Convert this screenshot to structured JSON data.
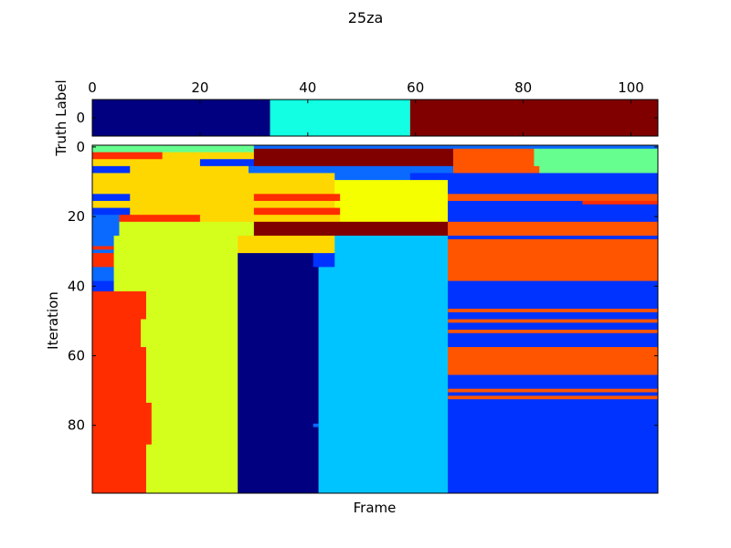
{
  "chart_data": [
    {
      "type": "heatmap",
      "panel": "truth",
      "title": "25za",
      "ylabel": "Truth Label",
      "xlim": [
        0,
        105
      ],
      "xticks": [
        "0",
        "20",
        "40",
        "60",
        "80",
        "100"
      ],
      "yticks": [
        "0"
      ],
      "colormap": "jet",
      "segments": [
        {
          "start": 0,
          "end": 33,
          "color": "#000080"
        },
        {
          "start": 33,
          "end": 59,
          "color": "#13ffe3"
        },
        {
          "start": 59,
          "end": 105,
          "color": "#800000"
        }
      ]
    },
    {
      "type": "heatmap",
      "panel": "iterations",
      "xlabel": "Frame",
      "ylabel": "Iteration",
      "xlim": [
        0,
        105
      ],
      "ylim": [
        0,
        100
      ],
      "yticks": [
        "0",
        "20",
        "40",
        "60",
        "80"
      ],
      "colormap": "jet",
      "row_groups": [
        {
          "from": 0,
          "to": 1,
          "segments": [
            [
              0,
              30,
              "#66ff8f"
            ],
            [
              30,
              83,
              "#0a6aff"
            ],
            [
              83,
              105,
              "#0a6aff"
            ]
          ]
        },
        {
          "from": 1,
          "to": 2,
          "segments": [
            [
              0,
              30,
              "#66ff8f"
            ],
            [
              30,
              67,
              "#800000"
            ],
            [
              67,
              82,
              "#ff5500"
            ],
            [
              82,
              105,
              "#66ff8f"
            ]
          ]
        },
        {
          "from": 2,
          "to": 4,
          "segments": [
            [
              0,
              13,
              "#ff2d00"
            ],
            [
              13,
              30,
              "#ffd700"
            ],
            [
              30,
              67,
              "#800000"
            ],
            [
              67,
              82,
              "#ff5500"
            ],
            [
              82,
              105,
              "#66ff8f"
            ]
          ]
        },
        {
          "from": 4,
          "to": 6,
          "segments": [
            [
              0,
              20,
              "#ffd700"
            ],
            [
              20,
              30,
              "#0033ff"
            ],
            [
              30,
              67,
              "#800000"
            ],
            [
              67,
              82,
              "#ff5500"
            ],
            [
              82,
              105,
              "#66ff8f"
            ]
          ]
        },
        {
          "from": 6,
          "to": 8,
          "segments": [
            [
              0,
              7,
              "#0033ff"
            ],
            [
              7,
              29,
              "#ffd700"
            ],
            [
              29,
              67,
              "#0a6aff"
            ],
            [
              67,
              83,
              "#ff5500"
            ],
            [
              83,
              105,
              "#66ff8f"
            ]
          ]
        },
        {
          "from": 8,
          "to": 10,
          "segments": [
            [
              0,
              45,
              "#ffd700"
            ],
            [
              45,
              59,
              "#0a6aff"
            ],
            [
              59,
              105,
              "#0033ff"
            ]
          ]
        },
        {
          "from": 10,
          "to": 14,
          "segments": [
            [
              0,
              45,
              "#ffd700"
            ],
            [
              45,
              66,
              "#f5ff00"
            ],
            [
              66,
              105,
              "#0033ff"
            ]
          ]
        },
        {
          "from": 14,
          "to": 16,
          "segments": [
            [
              0,
              7,
              "#0033ff"
            ],
            [
              7,
              30,
              "#ffd700"
            ],
            [
              30,
              46,
              "#ff2d00"
            ],
            [
              46,
              66,
              "#f5ff00"
            ],
            [
              66,
              105,
              "#ff5500"
            ]
          ]
        },
        {
          "from": 16,
          "to": 18,
          "segments": [
            [
              0,
              45,
              "#ffd700"
            ],
            [
              45,
              66,
              "#f5ff00"
            ],
            [
              66,
              105,
              "#0033ff"
            ]
          ]
        },
        {
          "from": 18,
          "to": 20,
          "segments": [
            [
              0,
              7,
              "#0033ff"
            ],
            [
              7,
              30,
              "#ffd700"
            ],
            [
              30,
              46,
              "#ff2d00"
            ],
            [
              46,
              66,
              "#f5ff00"
            ],
            [
              66,
              105,
              "#0033ff"
            ]
          ]
        },
        {
          "from": 20,
          "to": 22,
          "segments": [
            [
              0,
              5,
              "#0a6aff"
            ],
            [
              5,
              20,
              "#ff2d00"
            ],
            [
              20,
              30,
              "#ffd700"
            ],
            [
              30,
              46,
              "#ffd700"
            ],
            [
              46,
              66,
              "#f5ff00"
            ],
            [
              66,
              105,
              "#0033ff"
            ]
          ]
        },
        {
          "from": 22,
          "to": 26,
          "segments": [
            [
              0,
              5,
              "#0a6aff"
            ],
            [
              5,
              30,
              "#d4ff1c"
            ],
            [
              30,
              66,
              "#800000"
            ],
            [
              66,
              105,
              "#ff5500"
            ]
          ]
        },
        {
          "from": 26,
          "to": 31,
          "segments": [
            [
              0,
              4,
              "#0a6aff"
            ],
            [
              4,
              27,
              "#d4ff1c"
            ],
            [
              27,
              45,
              "#ffd700"
            ],
            [
              45,
              66,
              "#00c4ff"
            ],
            [
              66,
              105,
              "#ff5500"
            ]
          ]
        },
        {
          "from": 31,
          "to": 35,
          "segments": [
            [
              0,
              4,
              "#ff2d00"
            ],
            [
              4,
              27,
              "#d4ff1c"
            ],
            [
              27,
              41,
              "#000080"
            ],
            [
              41,
              45,
              "#0033ff"
            ],
            [
              45,
              66,
              "#00c4ff"
            ],
            [
              66,
              105,
              "#ff5500"
            ]
          ]
        },
        {
          "from": 35,
          "to": 39,
          "segments": [
            [
              0,
              4,
              "#0a6aff"
            ],
            [
              4,
              27,
              "#d4ff1c"
            ],
            [
              27,
              42,
              "#000080"
            ],
            [
              42,
              66,
              "#00c4ff"
            ],
            [
              66,
              105,
              "#ff5500"
            ]
          ]
        },
        {
          "from": 39,
          "to": 42,
          "segments": [
            [
              0,
              4,
              "#0033ff"
            ],
            [
              4,
              27,
              "#d4ff1c"
            ],
            [
              27,
              42,
              "#000080"
            ],
            [
              42,
              66,
              "#00c4ff"
            ],
            [
              66,
              105,
              "#0033ff"
            ]
          ]
        },
        {
          "from": 42,
          "to": 50,
          "segments": [
            [
              0,
              10,
              "#ff2d00"
            ],
            [
              10,
              27,
              "#d4ff1c"
            ],
            [
              27,
              42,
              "#000080"
            ],
            [
              42,
              66,
              "#00c4ff"
            ],
            [
              66,
              105,
              "#0033ff"
            ]
          ]
        },
        {
          "from": 50,
          "to": 58,
          "segments": [
            [
              0,
              9,
              "#ff2d00"
            ],
            [
              9,
              27,
              "#d4ff1c"
            ],
            [
              27,
              42,
              "#000080"
            ],
            [
              42,
              66,
              "#00c4ff"
            ],
            [
              66,
              105,
              "#0033ff"
            ]
          ]
        },
        {
          "from": 58,
          "to": 66,
          "segments": [
            [
              0,
              10,
              "#ff2d00"
            ],
            [
              10,
              27,
              "#d4ff1c"
            ],
            [
              27,
              42,
              "#000080"
            ],
            [
              42,
              66,
              "#00c4ff"
            ],
            [
              66,
              105,
              "#ff5500"
            ]
          ]
        },
        {
          "from": 66,
          "to": 74,
          "segments": [
            [
              0,
              10,
              "#ff2d00"
            ],
            [
              10,
              27,
              "#d4ff1c"
            ],
            [
              27,
              42,
              "#000080"
            ],
            [
              42,
              66,
              "#00c4ff"
            ],
            [
              66,
              105,
              "#0033ff"
            ]
          ]
        },
        {
          "from": 74,
          "to": 86,
          "segments": [
            [
              0,
              11,
              "#ff2d00"
            ],
            [
              11,
              27,
              "#d4ff1c"
            ],
            [
              27,
              42,
              "#000080"
            ],
            [
              42,
              66,
              "#00c4ff"
            ],
            [
              66,
              105,
              "#0033ff"
            ]
          ]
        },
        {
          "from": 86,
          "to": 100,
          "segments": [
            [
              0,
              10,
              "#ff2d00"
            ],
            [
              10,
              27,
              "#d4ff1c"
            ],
            [
              27,
              42,
              "#000080"
            ],
            [
              42,
              66,
              "#00c4ff"
            ],
            [
              66,
              105,
              "#0033ff"
            ]
          ]
        }
      ],
      "stripes": [
        {
          "row": 16,
          "start": 91,
          "end": 105,
          "color": "#ff2d00"
        },
        {
          "row": 23,
          "start": 66,
          "end": 105,
          "color": "#ff5500"
        },
        {
          "row": 26,
          "start": 66,
          "end": 105,
          "color": "#0033ff"
        },
        {
          "row": 29,
          "start": 0,
          "end": 4,
          "color": "#ff2d00"
        },
        {
          "row": 47,
          "start": 66,
          "end": 105,
          "color": "#ff5500"
        },
        {
          "row": 50,
          "start": 66,
          "end": 105,
          "color": "#ff5500"
        },
        {
          "row": 53,
          "start": 66,
          "end": 105,
          "color": "#ff5500"
        },
        {
          "row": 70,
          "start": 66,
          "end": 105,
          "color": "#ff5500"
        },
        {
          "row": 72,
          "start": 66,
          "end": 105,
          "color": "#ff5500"
        },
        {
          "row": 80,
          "start": 41,
          "end": 42,
          "color": "#0a6aff"
        }
      ]
    }
  ]
}
